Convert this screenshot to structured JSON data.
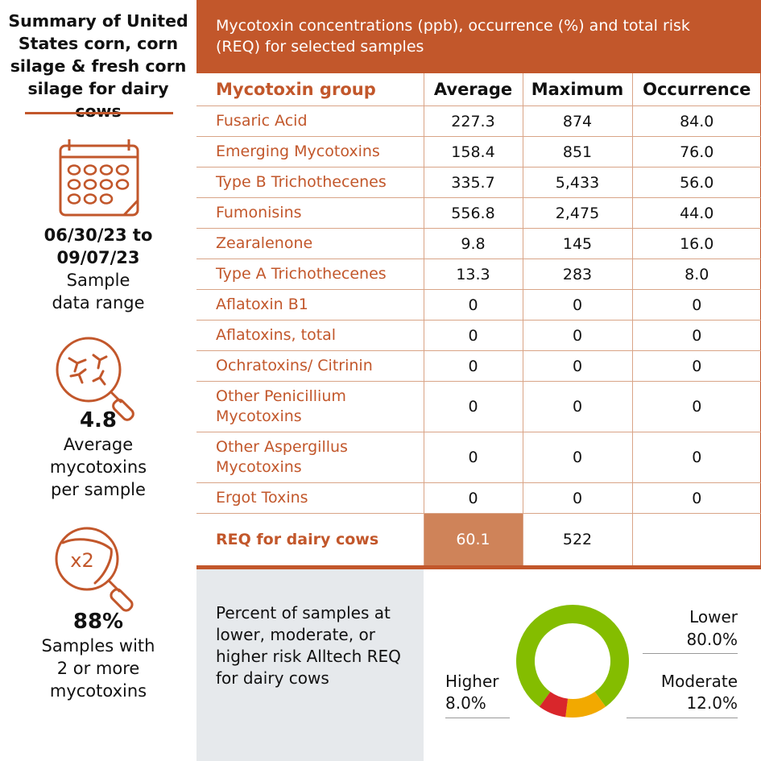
{
  "summary": {
    "title": "Summary of United States corn, corn silage & fresh corn silage for dairy cows",
    "date_range_line1": "06/30/23 to",
    "date_range_line2": "09/07/23",
    "date_label_line1": "Sample",
    "date_label_line2": "data range",
    "avg_value": "4.8",
    "avg_label_line1": "Average",
    "avg_label_line2": "mycotoxins",
    "avg_label_line3": "per sample",
    "multi_value": "88%",
    "multi_label_line1": "Samples with",
    "multi_label_line2": "2 or more",
    "multi_label_line3": "mycotoxins",
    "multi_icon_text": "x2"
  },
  "table": {
    "title": "Mycotoxin concentrations (ppb), occurrence (%) and total risk (REQ) for selected samples",
    "columns": [
      "Mycotoxin group",
      "Average",
      "Maximum",
      "Occurrence"
    ],
    "rows": [
      {
        "name": "Fusaric Acid",
        "average": "227.3",
        "maximum": "874",
        "occurrence": "84.0"
      },
      {
        "name": "Emerging Mycotoxins",
        "average": "158.4",
        "maximum": "851",
        "occurrence": "76.0"
      },
      {
        "name": "Type B Trichothecenes",
        "average": "335.7",
        "maximum": "5,433",
        "occurrence": "56.0"
      },
      {
        "name": "Fumonisins",
        "average": "556.8",
        "maximum": "2,475",
        "occurrence": "44.0"
      },
      {
        "name": "Zearalenone",
        "average": "9.8",
        "maximum": "145",
        "occurrence": "16.0"
      },
      {
        "name": "Type A Trichothecenes",
        "average": "13.3",
        "maximum": "283",
        "occurrence": "8.0"
      },
      {
        "name": "Aflatoxin B1",
        "average": "0",
        "maximum": "0",
        "occurrence": "0"
      },
      {
        "name": "Aflatoxins, total",
        "average": "0",
        "maximum": "0",
        "occurrence": "0"
      },
      {
        "name": "Ochratoxins/ Citrinin",
        "average": "0",
        "maximum": "0",
        "occurrence": "0"
      },
      {
        "name": "Other Penicillium Mycotoxins",
        "average": "0",
        "maximum": "0",
        "occurrence": "0"
      },
      {
        "name": "Other Aspergillus Mycotoxins",
        "average": "0",
        "maximum": "0",
        "occurrence": "0"
      },
      {
        "name": "Ergot Toxins",
        "average": "0",
        "maximum": "0",
        "occurrence": "0"
      }
    ],
    "req": {
      "name": "REQ for dairy cows",
      "average": "60.1",
      "maximum": "522",
      "occurrence": ""
    }
  },
  "risk": {
    "description": "Percent of samples at lower, moderate, or higher risk Alltech REQ for dairy cows"
  },
  "chart_data": {
    "type": "pie",
    "donut": true,
    "categories": [
      "Lower",
      "Moderate",
      "Higher"
    ],
    "values": [
      80.0,
      12.0,
      8.0
    ],
    "value_labels": [
      "80.0%",
      "12.0%",
      "8.0%"
    ],
    "colors": [
      "#84bd00",
      "#f2a900",
      "#d9262b"
    ]
  },
  "colors": {
    "accent": "#c2572b",
    "req_highlight": "#cf8359",
    "panel_gray": "#e6e9ec"
  },
  "icons": [
    "calendar-icon",
    "magnifier-mold-icon",
    "magnifier-x2-icon"
  ]
}
